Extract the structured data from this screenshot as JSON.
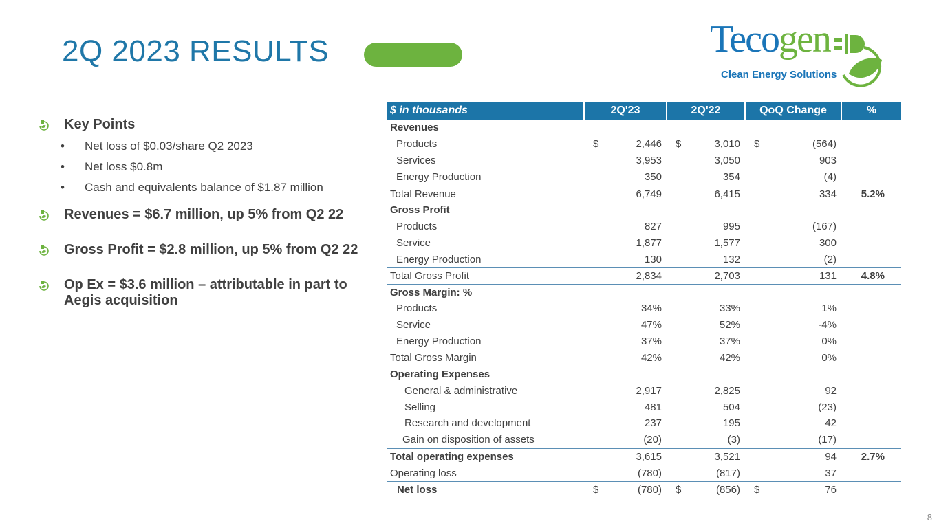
{
  "title": "2Q 2023 RESULTS",
  "logo": {
    "word_blue": "Teco",
    "word_green": "gen",
    "tagline": "Clean Energy Solutions"
  },
  "bullets": [
    {
      "text": "Key Points",
      "subs": [
        "Net loss of $0.03/share Q2 2023",
        "Net loss $0.8m",
        "Cash and equivalents balance of $1.87 million"
      ]
    },
    {
      "text": "Revenues = $6.7 million, up 5% from Q2 22",
      "subs": []
    },
    {
      "text": "Gross Profit = $2.8 million, up 5% from Q2 22",
      "subs": []
    },
    {
      "text": "Op Ex = $3.6 million – attributable in part to Aegis acquisition",
      "subs": []
    }
  ],
  "table": {
    "headers": [
      "$ in thousands",
      "2Q'23",
      "2Q'22",
      "QoQ Change",
      "%"
    ],
    "rows": [
      {
        "label": "Revenues",
        "style": "b",
        "v": [
          "",
          "",
          ""
        ],
        "d": false,
        "pct": ""
      },
      {
        "label": "Products",
        "style": "i1",
        "v": [
          "2,446",
          "3,010",
          "(564)"
        ],
        "d": true,
        "pct": ""
      },
      {
        "label": "Services",
        "style": "i1",
        "v": [
          "3,953",
          "3,050",
          "903"
        ],
        "d": false,
        "pct": ""
      },
      {
        "label": "Energy Production",
        "style": "i1",
        "v": [
          "350",
          "354",
          "(4)"
        ],
        "d": false,
        "pct": ""
      },
      {
        "label": "Total Revenue",
        "style": "bt",
        "v": [
          "6,749",
          "6,415",
          "334"
        ],
        "d": false,
        "pct": "5.2%"
      },
      {
        "label": "Gross Profit",
        "style": "b",
        "v": [
          "",
          "",
          ""
        ],
        "d": false,
        "pct": ""
      },
      {
        "label": "Products",
        "style": "i1",
        "v": [
          "827",
          "995",
          "(167)"
        ],
        "d": false,
        "pct": ""
      },
      {
        "label": "Service",
        "style": "i1",
        "v": [
          "1,877",
          "1,577",
          "300"
        ],
        "d": false,
        "pct": ""
      },
      {
        "label": "Energy Production",
        "style": "i1",
        "v": [
          "130",
          "132",
          "(2)"
        ],
        "d": false,
        "pct": ""
      },
      {
        "label": "Total Gross Profit",
        "style": "bt",
        "v": [
          "2,834",
          "2,703",
          "131"
        ],
        "d": false,
        "pct": "4.8%"
      },
      {
        "label": "Gross Margin: %",
        "style": "b bt",
        "v": [
          "",
          "",
          ""
        ],
        "d": false,
        "pct": ""
      },
      {
        "label": "Products",
        "style": "i1",
        "v": [
          "34%",
          "33%",
          "1%"
        ],
        "d": false,
        "pct": ""
      },
      {
        "label": "Service",
        "style": "i1",
        "v": [
          "47%",
          "52%",
          "-4%"
        ],
        "d": false,
        "pct": ""
      },
      {
        "label": "Energy Production",
        "style": "i1",
        "v": [
          "37%",
          "37%",
          "0%"
        ],
        "d": false,
        "pct": ""
      },
      {
        "label": "Total Gross Margin",
        "style": "",
        "v": [
          "42%",
          "42%",
          "0%"
        ],
        "d": false,
        "pct": ""
      },
      {
        "label": "Operating Expenses",
        "style": "b",
        "v": [
          "",
          "",
          ""
        ],
        "d": false,
        "pct": ""
      },
      {
        "label": "General & administrative",
        "style": "i2",
        "v": [
          "2,917",
          "2,825",
          "92"
        ],
        "d": false,
        "pct": ""
      },
      {
        "label": "Selling",
        "style": "i2",
        "v": [
          "481",
          "504",
          "(23)"
        ],
        "d": false,
        "pct": ""
      },
      {
        "label": "Research and development",
        "style": "i2",
        "v": [
          "237",
          "195",
          "42"
        ],
        "d": false,
        "pct": ""
      },
      {
        "label": "Gain on disposition of assets",
        "style": "i3",
        "v": [
          "(20)",
          "(3)",
          "(17)"
        ],
        "d": false,
        "pct": ""
      },
      {
        "label": "Total operating expenses",
        "style": "b bt",
        "v": [
          "3,615",
          "3,521",
          "94"
        ],
        "d": false,
        "pct": "2.7%"
      },
      {
        "label": "Operating loss",
        "style": "bt",
        "v": [
          "(780)",
          "(817)",
          "37"
        ],
        "d": false,
        "pct": ""
      },
      {
        "label": "Net loss",
        "style": "b bt i4",
        "v": [
          "(780)",
          "(856)",
          "76"
        ],
        "d": true,
        "pct": ""
      }
    ],
    "dollar": "$"
  },
  "page_number": "8",
  "colors": {
    "title": "#1f77a8",
    "accent_green": "#6db33f",
    "header_bg": "#1c75a8"
  }
}
